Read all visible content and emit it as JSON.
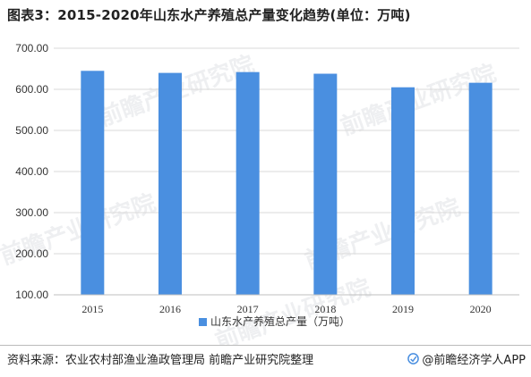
{
  "title": "图表3：2015-2020年山东水产养殖总产量变化趋势(单位：万吨)",
  "watermark_text": "前瞻产业研究院",
  "source": "资料来源：农业农村部渔业渔政管理局 前瞻产业研究院整理",
  "brand": "@前瞻经济学人APP",
  "colors": {
    "bar": "#4a8fe0",
    "grid": "#d9d9d9",
    "axis": "#bfbfbf"
  },
  "chart_data": {
    "type": "bar",
    "categories": [
      "2015",
      "2016",
      "2017",
      "2018",
      "2019",
      "2020"
    ],
    "series": [
      {
        "name": "山东水产养殖总产量（万吨）",
        "values": [
          645,
          640,
          642,
          638,
          605,
          616
        ]
      }
    ],
    "ylim": [
      100,
      700
    ],
    "yticks": [
      "100.00",
      "200.00",
      "300.00",
      "400.00",
      "500.00",
      "600.00",
      "700.00"
    ],
    "grid": true,
    "legend_position": "bottom"
  }
}
